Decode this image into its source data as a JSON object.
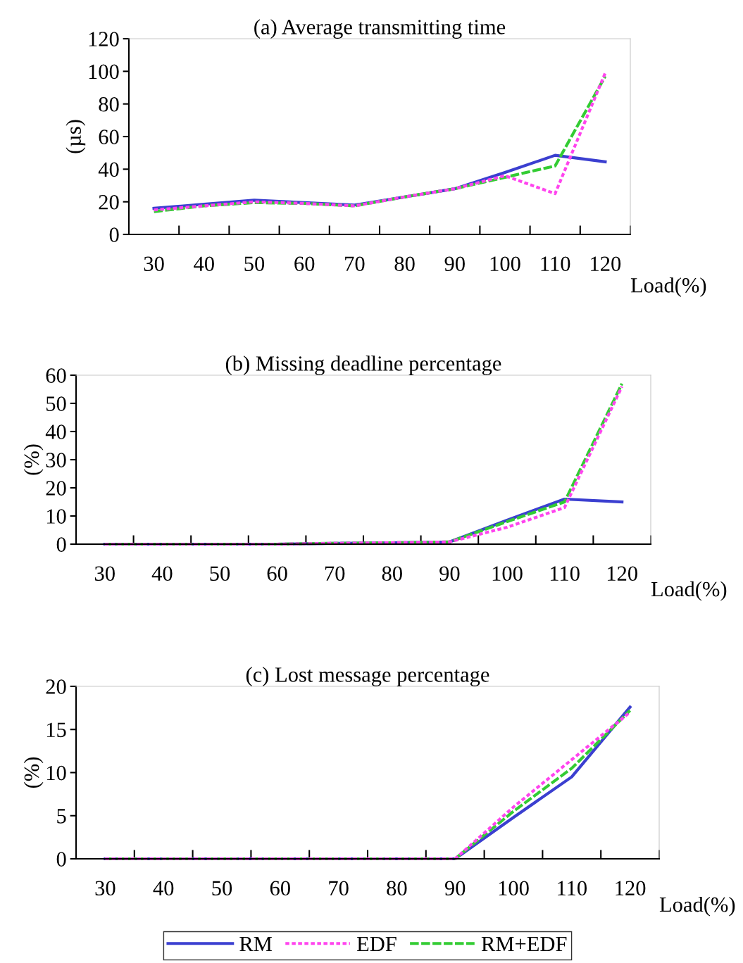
{
  "chart_data": [
    {
      "type": "line",
      "title": "(a) Average transmitting time",
      "ylabel": "(µs)",
      "xlabel": "Load(%)",
      "categories": [
        "30",
        "40",
        "50",
        "60",
        "70",
        "80",
        "90",
        "100",
        "110",
        "120"
      ],
      "ylim": [
        0,
        120
      ],
      "yticks": [
        0,
        20,
        40,
        60,
        80,
        100,
        120
      ],
      "grid": false,
      "legend": false,
      "series": [
        {
          "color": "#3b3fd0",
          "line_style": "solid",
          "values": [
            16,
            18.5,
            21,
            19.5,
            18,
            23,
            28,
            38,
            48.5,
            44.5
          ]
        },
        {
          "color": "#ff44ee",
          "line_style": "dotted",
          "values": [
            15,
            17.5,
            20,
            19,
            17.5,
            23,
            28,
            36,
            25,
            99
          ]
        },
        {
          "color": "#33cc33",
          "line_style": "dashed",
          "values": [
            14,
            17.5,
            19.5,
            19,
            17.5,
            23,
            28,
            35,
            42,
            97
          ]
        }
      ]
    },
    {
      "type": "line",
      "title": "(b) Missing deadline percentage",
      "ylabel": "(%)",
      "xlabel": "Load(%)",
      "categories": [
        "30",
        "40",
        "50",
        "60",
        "70",
        "80",
        "90",
        "100",
        "110",
        "120"
      ],
      "ylim": [
        0,
        60
      ],
      "yticks": [
        0,
        10,
        20,
        30,
        40,
        50,
        60
      ],
      "grid": false,
      "legend": false,
      "series": [
        {
          "color": "#3b3fd0",
          "line_style": "solid",
          "values": [
            0,
            0,
            0,
            0,
            0.3,
            0.5,
            0.8,
            8.5,
            16,
            15
          ]
        },
        {
          "color": "#ff44ee",
          "line_style": "dotted",
          "values": [
            0,
            0,
            0,
            0,
            0.3,
            0.5,
            0.8,
            6,
            13,
            56
          ]
        },
        {
          "color": "#33cc33",
          "line_style": "dashed",
          "values": [
            0,
            0,
            0,
            0,
            0.3,
            0.5,
            0.8,
            8,
            15,
            57
          ]
        }
      ]
    },
    {
      "type": "line",
      "title": "(c) Lost message percentage",
      "ylabel": "(%)",
      "xlabel": "Load(%)",
      "categories": [
        "30",
        "40",
        "50",
        "60",
        "70",
        "80",
        "90",
        "100",
        "110",
        "120"
      ],
      "ylim": [
        0,
        20
      ],
      "yticks": [
        0,
        5,
        10,
        15,
        20
      ],
      "grid": false,
      "legend": "bottom",
      "series": [
        {
          "name": "RM",
          "color": "#3b3fd0",
          "line_style": "solid",
          "values": [
            0,
            0,
            0,
            0,
            0,
            0,
            0,
            4.8,
            9.5,
            17.6
          ]
        },
        {
          "name": "EDF",
          "color": "#ff44ee",
          "line_style": "dotted",
          "values": [
            0,
            0,
            0,
            0,
            0,
            0,
            0,
            6,
            11.5,
            17
          ]
        },
        {
          "name": "RM+EDF",
          "color": "#33cc33",
          "line_style": "dashed",
          "values": [
            0,
            0,
            0,
            0,
            0,
            0,
            0,
            5.5,
            10.5,
            17.2
          ]
        }
      ]
    }
  ]
}
